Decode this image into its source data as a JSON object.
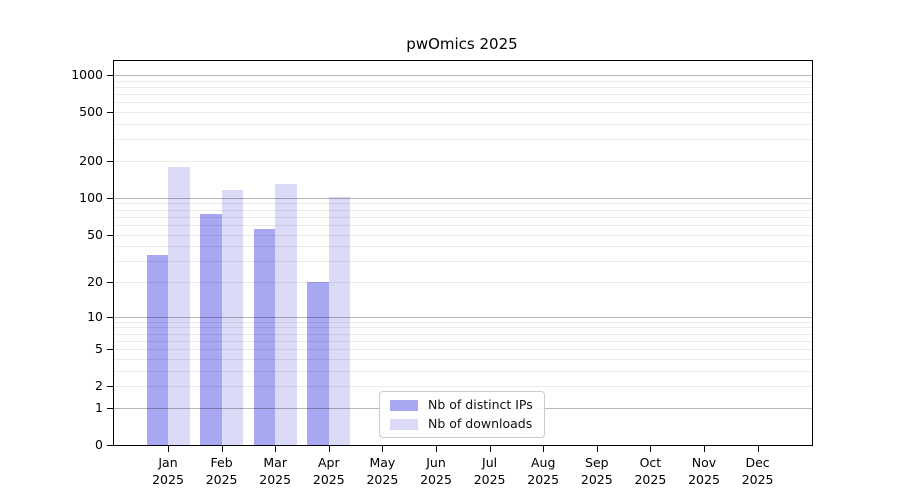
{
  "title": "pwOmics 2025",
  "chart_data": {
    "type": "bar",
    "title": "pwOmics 2025",
    "categories": [
      "Jan 2025",
      "Feb 2025",
      "Mar 2025",
      "Apr 2025",
      "May 2025",
      "Jun 2025",
      "Jul 2025",
      "Aug 2025",
      "Sep 2025",
      "Oct 2025",
      "Nov 2025",
      "Dec 2025"
    ],
    "series": [
      {
        "name": "Nb of distinct IPs",
        "color": "#a7a7f2",
        "values": [
          34,
          74,
          56,
          20,
          null,
          null,
          null,
          null,
          null,
          null,
          null,
          null
        ]
      },
      {
        "name": "Nb of downloads",
        "color": "#dbdbf8",
        "values": [
          180,
          115,
          130,
          102,
          null,
          null,
          null,
          null,
          null,
          null,
          null,
          null
        ]
      }
    ],
    "xlabel": "",
    "ylabel": "",
    "y_scale": "log10(1+x)",
    "y_ticks": [
      0,
      1,
      2,
      5,
      10,
      20,
      50,
      100,
      200,
      500,
      1000
    ],
    "ylim": [
      0,
      1300
    ],
    "grid": "horizontal major at powers of 10, minor log subdivisions, drawn over bars",
    "legend_position": "inside bottom, left of center",
    "colors": {
      "ips_bar": "#a7a7f2",
      "downloads_bar": "#dbdbf8",
      "major_grid": "#b5b5b5",
      "minor_grid": "#ebebeb",
      "axis": "#000000",
      "legend_border": "#cccccc"
    }
  },
  "legend": {
    "items": [
      "Nb of distinct IPs",
      "Nb of downloads"
    ]
  }
}
